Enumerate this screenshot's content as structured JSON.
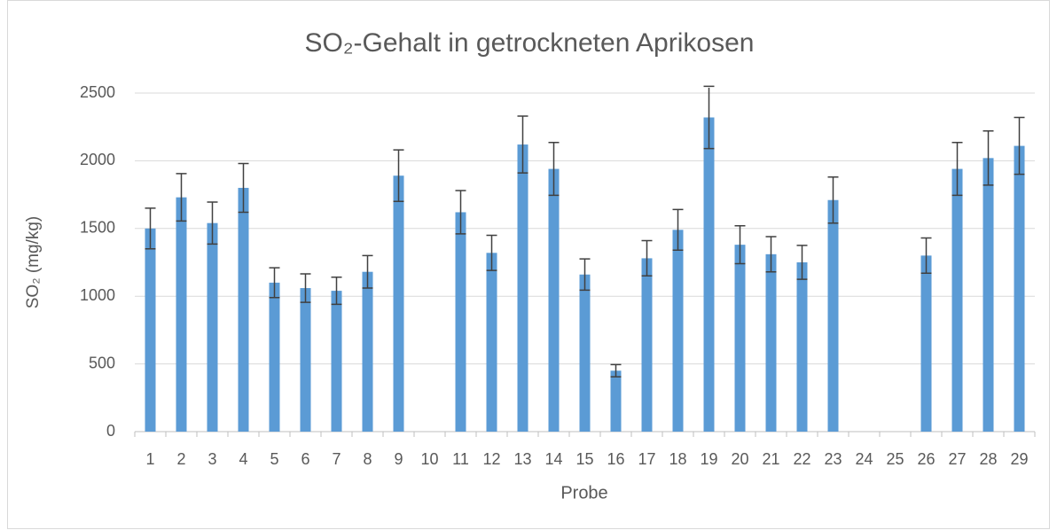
{
  "chart_data": {
    "type": "bar",
    "title": "SO₂-Gehalt in getrockneten Aprikosen",
    "x_label": "Probe",
    "y_label": "SO₂ (mg/kg)",
    "categories": [
      "1",
      "2",
      "3",
      "4",
      "5",
      "6",
      "7",
      "8",
      "9",
      "10",
      "11",
      "12",
      "13",
      "14",
      "15",
      "16",
      "17",
      "18",
      "19",
      "20",
      "21",
      "22",
      "23",
      "24",
      "25",
      "26",
      "27",
      "28",
      "29"
    ],
    "values": [
      1500,
      1730,
      1540,
      1800,
      1100,
      1060,
      1040,
      1180,
      1890,
      null,
      1620,
      1320,
      2120,
      1940,
      1160,
      450,
      1280,
      1490,
      2320,
      1380,
      1310,
      1250,
      1710,
      null,
      null,
      1300,
      1940,
      2020,
      2110
    ],
    "errors": [
      150,
      175,
      155,
      180,
      110,
      105,
      100,
      120,
      190,
      null,
      160,
      130,
      210,
      195,
      115,
      45,
      130,
      150,
      230,
      140,
      130,
      125,
      170,
      null,
      null,
      130,
      195,
      200,
      210
    ],
    "color": "#5b9bd5",
    "error_color": "#404040",
    "ylim": [
      0,
      2500
    ],
    "yticks": [
      0,
      500,
      1000,
      1500,
      2000,
      2500
    ],
    "grid": true
  }
}
